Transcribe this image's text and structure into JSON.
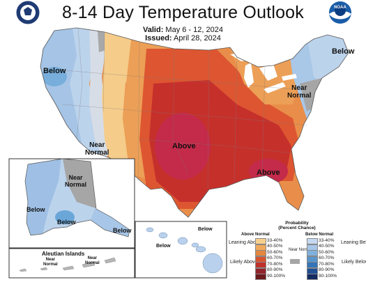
{
  "title": "8-14 Day Temperature Outlook",
  "valid_label": "Valid:",
  "valid_dates": "May 6 - 12, 2024",
  "issued_label": "Issued:",
  "issued_date": "April 28, 2024",
  "logos": {
    "left": "doc-seal",
    "right": "noaa-logo",
    "right_text": "NOAA"
  },
  "map_labels": {
    "west_below": "Below",
    "northeast_below": "Below",
    "northeast_near": "Near\nNormal",
    "west_near": "Near\nNormal",
    "central_above": "Above",
    "southeast_above": "Above",
    "alaska_near": "Near\nNormal",
    "alaska_below_west": "Below",
    "alaska_below_center": "Below",
    "alaska_below_southeast": "Below",
    "aleutian_title": "Aleutian Islands",
    "aleutian_near_1": "Near\nNormal",
    "aleutian_near_2": "Near\nNormal",
    "hawaii_below_1": "Below",
    "hawaii_below_2": "Below"
  },
  "legend": {
    "title": "Probability\n(Percent Chance)",
    "above_header": "Above Normal",
    "below_header": "Below Normal",
    "near_label": "Near\nNormal",
    "leaning_above": "Leaning\nAbove",
    "likely_above": "Likely\nAbove",
    "leaning_below": "Leaning\nBelow",
    "likely_below": "Likely\nBelow",
    "ranges": [
      "33-40%",
      "40-50%",
      "50-60%",
      "60-70%",
      "70-80%",
      "80-90%",
      "90-100%"
    ],
    "above_colors": [
      "#f7d08e",
      "#f0a95c",
      "#e4883f",
      "#d8542f",
      "#c0312c",
      "#93242b",
      "#6b1a1e"
    ],
    "below_colors": [
      "#c5d9f0",
      "#a7c6e8",
      "#80b1de",
      "#5895cd",
      "#3574b8",
      "#204f94",
      "#142b60"
    ],
    "near_color": "#a6a6a6"
  }
}
